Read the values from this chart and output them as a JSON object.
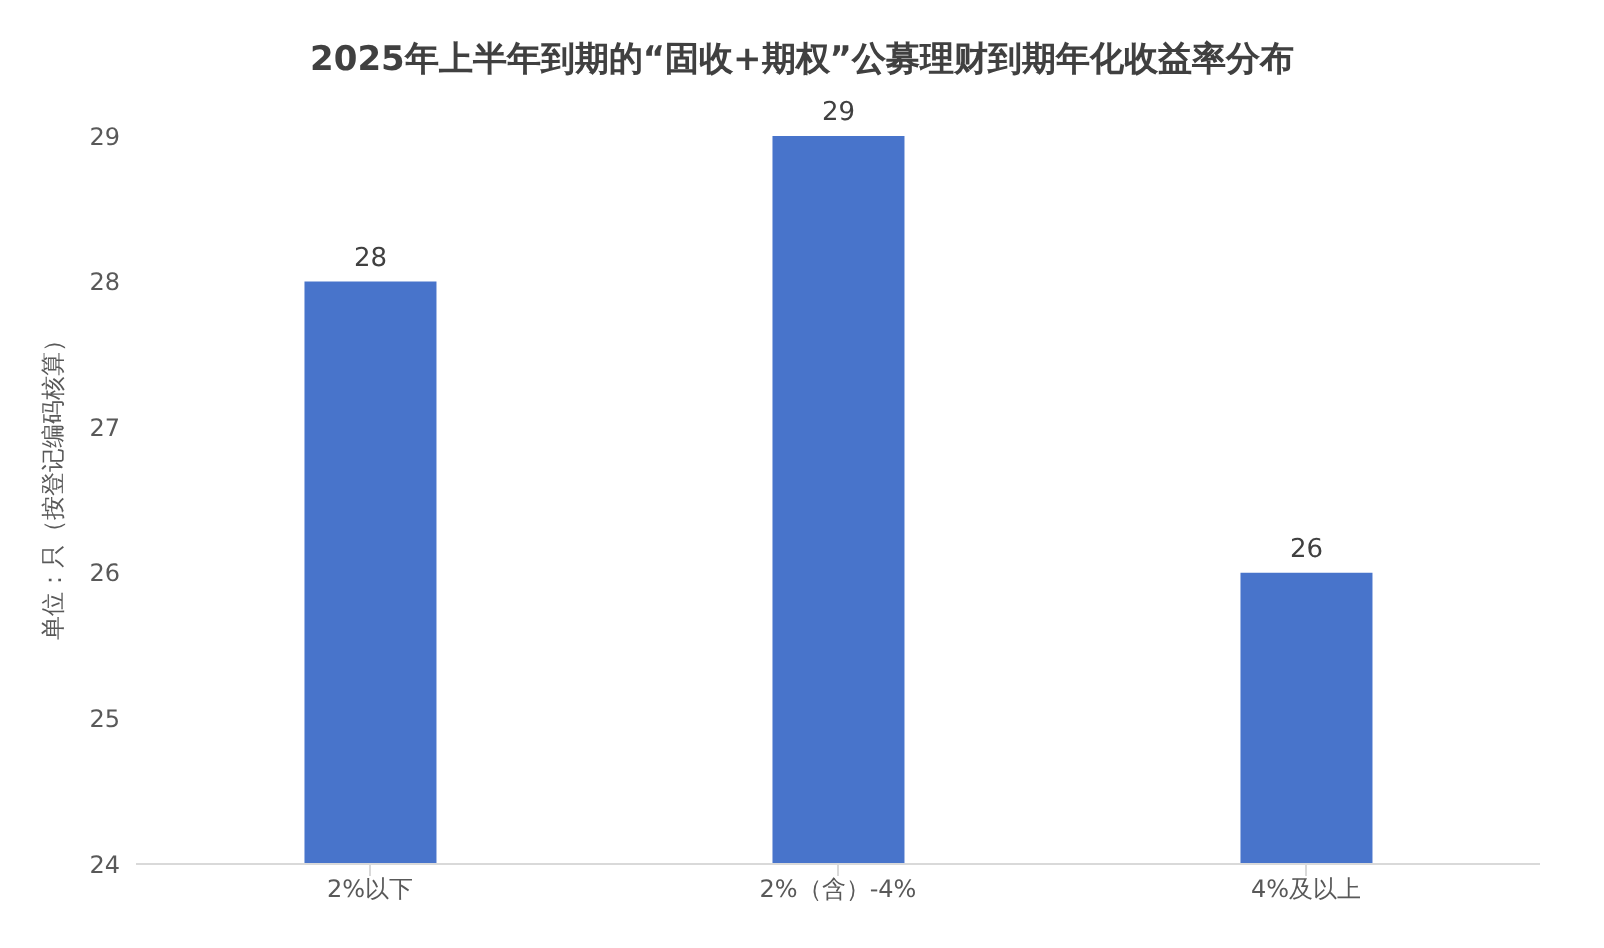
{
  "chart_data": {
    "type": "bar",
    "title": "2025年上半年到期的“固收+期权”公募理财到期年化收益率分布",
    "ylabel": "单位：只（按登记编码核算）",
    "categories": [
      "2%以下",
      "2%（含）-4%",
      "4%及以上"
    ],
    "series": [
      {
        "color": "#4874cb",
        "values": [
          28,
          29,
          26
        ]
      }
    ],
    "ylim": [
      24,
      29
    ],
    "yticks": [
      24,
      25,
      26,
      27,
      28,
      29
    ],
    "grid": false,
    "data_labels": true
  }
}
